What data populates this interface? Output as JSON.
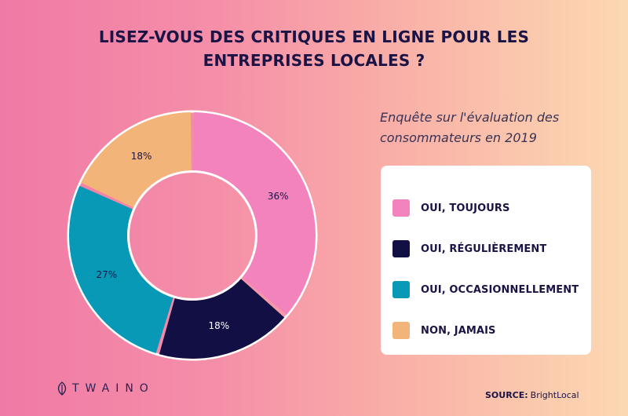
{
  "title": {
    "line1": "LISEZ-VOUS DES CRITIQUES EN LIGNE POUR LES",
    "line2": "ENTREPRISES LOCALES ?"
  },
  "subtitle": {
    "line1": "Enquête sur l'évaluation des",
    "line2": "consommateurs  en 2019"
  },
  "chart_data": {
    "type": "pie",
    "donut": true,
    "categories": [
      "OUI, TOUJOURS",
      "OUI, RÉGULIÈREMENT",
      "OUI, OCCASIONNELLEMENT",
      "NON, JAMAIS"
    ],
    "values": [
      36,
      18,
      27,
      18
    ],
    "labels": [
      "36%",
      "18%",
      "27%",
      "18%"
    ],
    "colors": [
      "#f283bd",
      "#120f45",
      "#0899b7",
      "#f2b478"
    ],
    "label_colors": [
      "#1a1446",
      "#ffffff",
      "#1a1446",
      "#1a1446"
    ],
    "legend_position": "right"
  },
  "logo": {
    "text": "TWAINO"
  },
  "source": {
    "label": "SOURCE:",
    "value": "BrightLocal"
  }
}
